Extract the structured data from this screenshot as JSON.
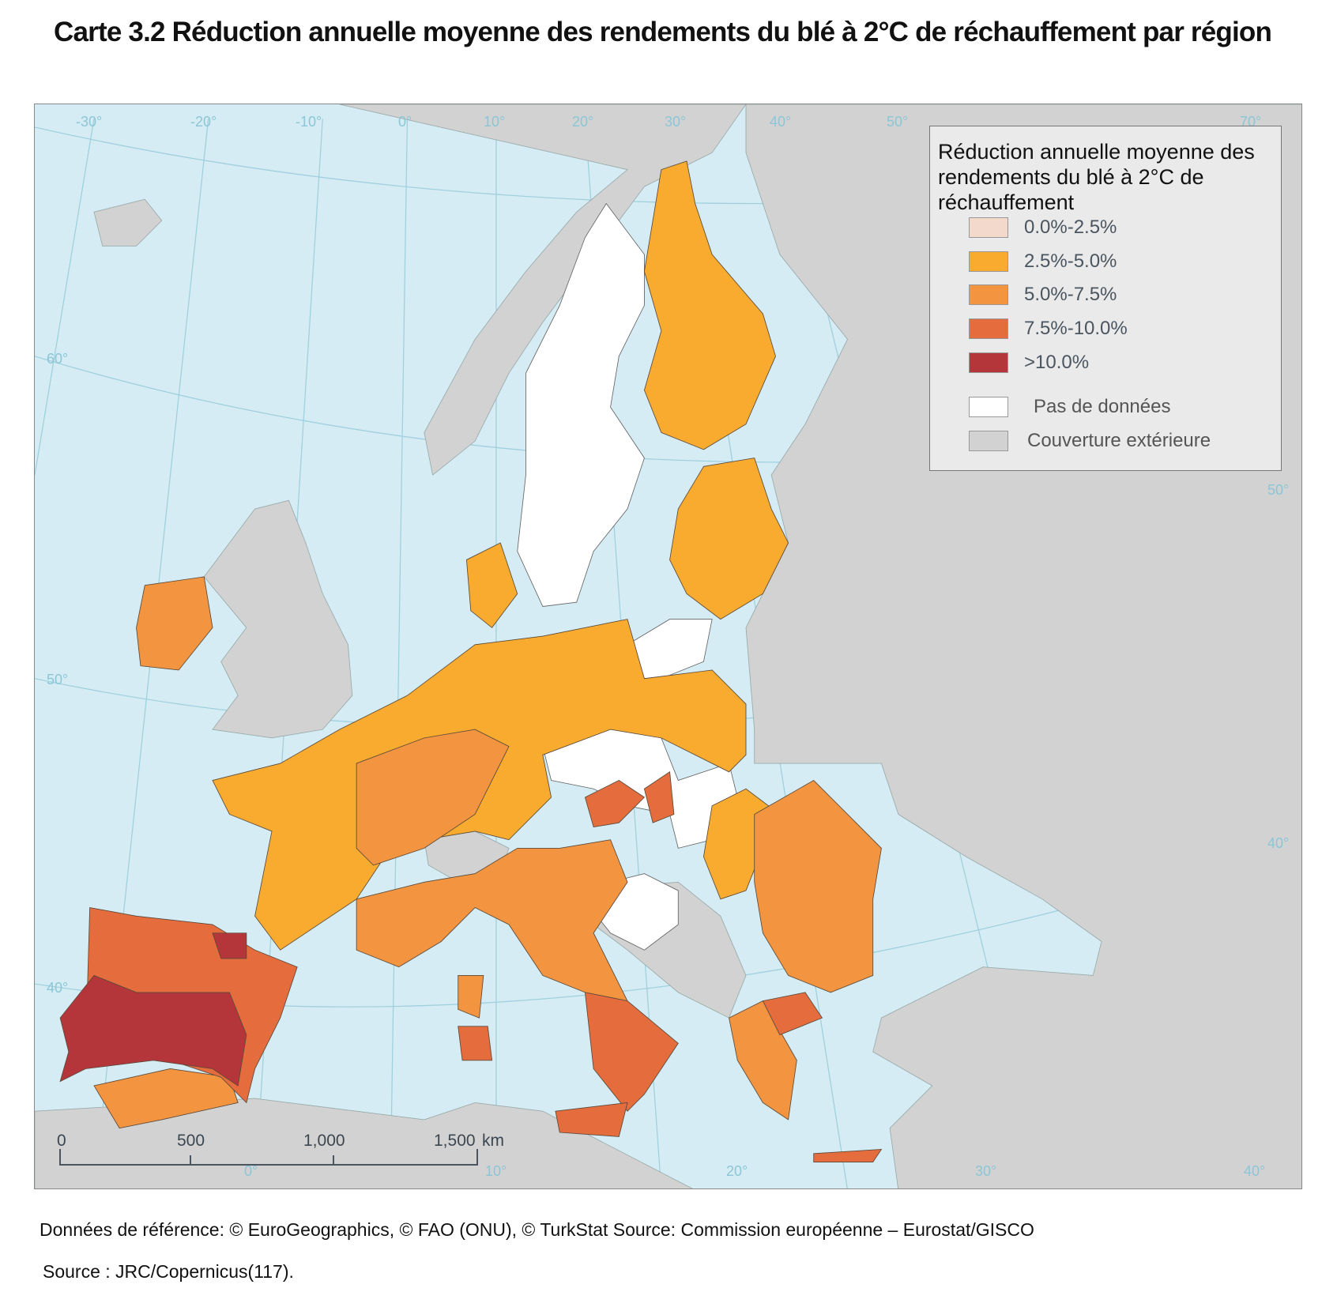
{
  "title": "Carte 3.2 Réduction annuelle moyenne des rendements du blé à 2°C de réchauffement par région",
  "legend": {
    "title": "Réduction annuelle moyenne des rendements du blé à 2°C de réchauffement",
    "items": [
      {
        "label": "0.0%-2.5%",
        "color": "#f2d9cc"
      },
      {
        "label": "2.5%-5.0%",
        "color": "#f9ab2f"
      },
      {
        "label": "5.0%-7.5%",
        "color": "#f29440"
      },
      {
        "label": "7.5%-10.0%",
        "color": "#e46c3d"
      },
      {
        "label": ">10.0%",
        "color": "#b5363a"
      },
      {
        "label": "Pas de données",
        "color": "#ffffff"
      },
      {
        "label": "Couverture extérieure",
        "color": "#d2d2d2"
      }
    ]
  },
  "graticule": {
    "top": [
      "-30°",
      "-20°",
      "-10°",
      "0°",
      "10°",
      "20°",
      "30°",
      "40°",
      "50°",
      "70°"
    ],
    "left": [
      "60°",
      "50°",
      "40°"
    ],
    "bottom": [
      "0°",
      "10°",
      "20°",
      "30°",
      "40°"
    ],
    "right": [
      "50°",
      "40°"
    ]
  },
  "scale_bar": {
    "ticks": [
      "0",
      "500",
      "1,000",
      "1,500"
    ],
    "unit": "km"
  },
  "colors": {
    "sea": "#d6ecf4",
    "outside": "#d2d2d2",
    "graticule": "#8cc6d6"
  },
  "footer": {
    "references": "Données de référence: © EuroGeographics, © FAO (ONU), © TurkStat Source: Commission européenne – Eurostat/GISCO",
    "source": "Source : JRC/Copernicus(117)."
  }
}
